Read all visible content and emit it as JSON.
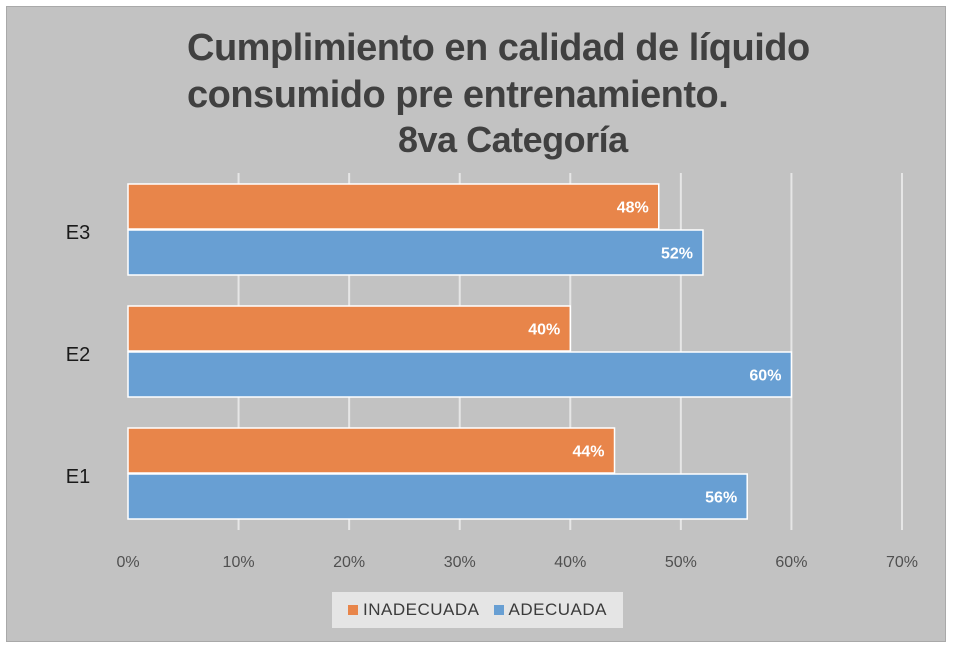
{
  "chart_data": {
    "type": "bar",
    "orientation": "horizontal",
    "title_lines": [
      "Cumplimiento en calidad de líquido",
      "consumido pre entrenamiento.",
      "8va Categoría"
    ],
    "categories": [
      "E3",
      "E2",
      "E1"
    ],
    "series": [
      {
        "name": "INADECUADA",
        "color": "#e8854a",
        "values": [
          48,
          40,
          44
        ],
        "labels": [
          "48%",
          "40%",
          "44%"
        ]
      },
      {
        "name": "ADECUADA",
        "color": "#689fd3",
        "values": [
          52,
          60,
          56
        ],
        "labels": [
          "52%",
          "60%",
          "56%"
        ]
      }
    ],
    "x_ticks": [
      "0%",
      "10%",
      "20%",
      "30%",
      "40%",
      "50%",
      "60%",
      "70%"
    ],
    "xlim": [
      0,
      70
    ],
    "grid": true,
    "legend_position": "bottom"
  }
}
